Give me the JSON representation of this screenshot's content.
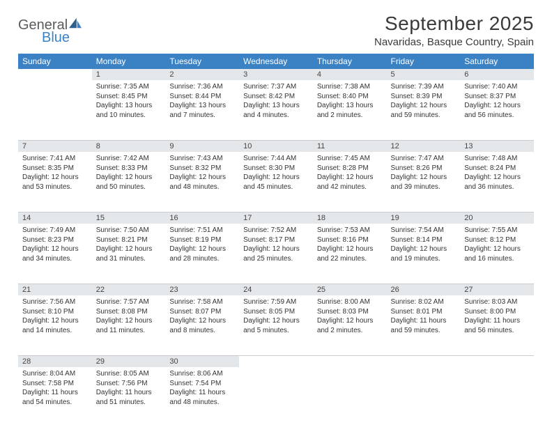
{
  "brand": {
    "word1": "General",
    "word2": "Blue"
  },
  "title": "September 2025",
  "location": "Navaridas, Basque Country, Spain",
  "colors": {
    "header_bg": "#3b82c4",
    "header_text": "#ffffff",
    "daynum_bg": "#e4e7ea",
    "border": "#2f5f8f",
    "text": "#333333",
    "brand_gray": "#5a5a5a",
    "brand_blue": "#3b82c4",
    "page_bg": "#ffffff"
  },
  "layout": {
    "columns": 7,
    "rows": 5,
    "start_day_index": 1
  },
  "weekdays": [
    "Sunday",
    "Monday",
    "Tuesday",
    "Wednesday",
    "Thursday",
    "Friday",
    "Saturday"
  ],
  "days": [
    {
      "n": 1,
      "sr": "7:35 AM",
      "ss": "8:45 PM",
      "dl": "13 hours and 10 minutes."
    },
    {
      "n": 2,
      "sr": "7:36 AM",
      "ss": "8:44 PM",
      "dl": "13 hours and 7 minutes."
    },
    {
      "n": 3,
      "sr": "7:37 AM",
      "ss": "8:42 PM",
      "dl": "13 hours and 4 minutes."
    },
    {
      "n": 4,
      "sr": "7:38 AM",
      "ss": "8:40 PM",
      "dl": "13 hours and 2 minutes."
    },
    {
      "n": 5,
      "sr": "7:39 AM",
      "ss": "8:39 PM",
      "dl": "12 hours and 59 minutes."
    },
    {
      "n": 6,
      "sr": "7:40 AM",
      "ss": "8:37 PM",
      "dl": "12 hours and 56 minutes."
    },
    {
      "n": 7,
      "sr": "7:41 AM",
      "ss": "8:35 PM",
      "dl": "12 hours and 53 minutes."
    },
    {
      "n": 8,
      "sr": "7:42 AM",
      "ss": "8:33 PM",
      "dl": "12 hours and 50 minutes."
    },
    {
      "n": 9,
      "sr": "7:43 AM",
      "ss": "8:32 PM",
      "dl": "12 hours and 48 minutes."
    },
    {
      "n": 10,
      "sr": "7:44 AM",
      "ss": "8:30 PM",
      "dl": "12 hours and 45 minutes."
    },
    {
      "n": 11,
      "sr": "7:45 AM",
      "ss": "8:28 PM",
      "dl": "12 hours and 42 minutes."
    },
    {
      "n": 12,
      "sr": "7:47 AM",
      "ss": "8:26 PM",
      "dl": "12 hours and 39 minutes."
    },
    {
      "n": 13,
      "sr": "7:48 AM",
      "ss": "8:24 PM",
      "dl": "12 hours and 36 minutes."
    },
    {
      "n": 14,
      "sr": "7:49 AM",
      "ss": "8:23 PM",
      "dl": "12 hours and 34 minutes."
    },
    {
      "n": 15,
      "sr": "7:50 AM",
      "ss": "8:21 PM",
      "dl": "12 hours and 31 minutes."
    },
    {
      "n": 16,
      "sr": "7:51 AM",
      "ss": "8:19 PM",
      "dl": "12 hours and 28 minutes."
    },
    {
      "n": 17,
      "sr": "7:52 AM",
      "ss": "8:17 PM",
      "dl": "12 hours and 25 minutes."
    },
    {
      "n": 18,
      "sr": "7:53 AM",
      "ss": "8:16 PM",
      "dl": "12 hours and 22 minutes."
    },
    {
      "n": 19,
      "sr": "7:54 AM",
      "ss": "8:14 PM",
      "dl": "12 hours and 19 minutes."
    },
    {
      "n": 20,
      "sr": "7:55 AM",
      "ss": "8:12 PM",
      "dl": "12 hours and 16 minutes."
    },
    {
      "n": 21,
      "sr": "7:56 AM",
      "ss": "8:10 PM",
      "dl": "12 hours and 14 minutes."
    },
    {
      "n": 22,
      "sr": "7:57 AM",
      "ss": "8:08 PM",
      "dl": "12 hours and 11 minutes."
    },
    {
      "n": 23,
      "sr": "7:58 AM",
      "ss": "8:07 PM",
      "dl": "12 hours and 8 minutes."
    },
    {
      "n": 24,
      "sr": "7:59 AM",
      "ss": "8:05 PM",
      "dl": "12 hours and 5 minutes."
    },
    {
      "n": 25,
      "sr": "8:00 AM",
      "ss": "8:03 PM",
      "dl": "12 hours and 2 minutes."
    },
    {
      "n": 26,
      "sr": "8:02 AM",
      "ss": "8:01 PM",
      "dl": "11 hours and 59 minutes."
    },
    {
      "n": 27,
      "sr": "8:03 AM",
      "ss": "8:00 PM",
      "dl": "11 hours and 56 minutes."
    },
    {
      "n": 28,
      "sr": "8:04 AM",
      "ss": "7:58 PM",
      "dl": "11 hours and 54 minutes."
    },
    {
      "n": 29,
      "sr": "8:05 AM",
      "ss": "7:56 PM",
      "dl": "11 hours and 51 minutes."
    },
    {
      "n": 30,
      "sr": "8:06 AM",
      "ss": "7:54 PM",
      "dl": "11 hours and 48 minutes."
    }
  ],
  "labels": {
    "sunrise": "Sunrise: ",
    "sunset": "Sunset: ",
    "daylight": "Daylight: "
  }
}
